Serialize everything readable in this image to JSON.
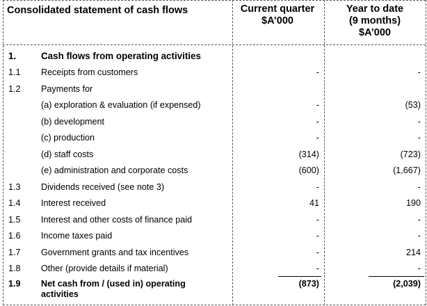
{
  "header": {
    "title": "Consolidated statement of cash flows",
    "col1_line1": "Current quarter",
    "col1_line2": "$A’000",
    "col2_line1": "Year to date",
    "col2_line2": "(9 months)",
    "col2_line3": "$A’000"
  },
  "section": {
    "num": "1.",
    "label": "Cash flows from operating activities"
  },
  "rows": [
    {
      "num": "1.1",
      "label": "Receipts from customers",
      "current": "-",
      "ytd": "-"
    },
    {
      "num": "1.2",
      "label": "Payments for",
      "current": "",
      "ytd": ""
    },
    {
      "num": "",
      "label": "(a)   exploration & evaluation (if expensed)",
      "current": "-",
      "ytd": "(53)"
    },
    {
      "num": "",
      "label": "(b)   development",
      "current": "-",
      "ytd": "-"
    },
    {
      "num": "",
      "label": "(c)   production",
      "current": "-",
      "ytd": "-"
    },
    {
      "num": "",
      "label": "(d)   staff costs",
      "current": "(314)",
      "ytd": "(723)"
    },
    {
      "num": "",
      "label": "(e)   administration and corporate costs",
      "current": "(600)",
      "ytd": "(1,667)"
    },
    {
      "num": "1.3",
      "label": "Dividends received (see note 3)",
      "current": "-",
      "ytd": "-"
    },
    {
      "num": "1.4",
      "label": "Interest received",
      "current": "41",
      "ytd": "190"
    },
    {
      "num": "1.5",
      "label": "Interest and other costs of finance paid",
      "current": "-",
      "ytd": "-"
    },
    {
      "num": "1.6",
      "label": "Income taxes paid",
      "current": "-",
      "ytd": "-"
    },
    {
      "num": "1.7",
      "label": "Government grants and tax incentives",
      "current": "-",
      "ytd": "214"
    },
    {
      "num": "1.8",
      "label": "Other (provide details if material)",
      "current": "-",
      "ytd": "-"
    }
  ],
  "total": {
    "num": "1.9",
    "label": "Net cash from / (used in) operating activities",
    "current": "(873)",
    "ytd": "(2,039)"
  }
}
